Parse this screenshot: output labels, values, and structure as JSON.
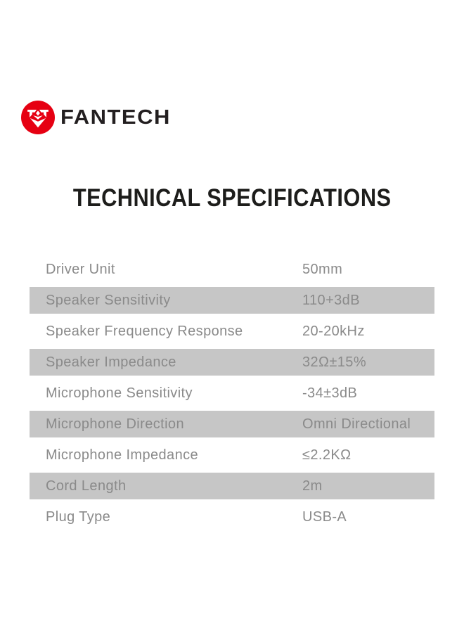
{
  "page": {
    "background": "#ffffff"
  },
  "logo": {
    "brand": "FANTECH",
    "emblem_icon": "fantech-falcon-emblem",
    "emblem_color": "#e60012",
    "text_color": "#231f20"
  },
  "title": {
    "text": "TECHNICAL SPECIFICATIONS",
    "color": "#1d1d1b"
  },
  "spec_table": {
    "stripe_color": "#c6c6c6",
    "text_color": "#8a8a8a",
    "rows": [
      {
        "label": "Driver Unit",
        "value": "50mm"
      },
      {
        "label": "Speaker Sensitivity",
        "value": "110+3dB"
      },
      {
        "label": "Speaker Frequency Response",
        "value": "20-20kHz"
      },
      {
        "label": "Speaker Impedance",
        "value": "32Ω±15%"
      },
      {
        "label": "Microphone Sensitivity",
        "value": "-34±3dB"
      },
      {
        "label": "Microphone Direction",
        "value": "Omni Directional"
      },
      {
        "label": "Microphone Impedance",
        "value": "≤2.2KΩ"
      },
      {
        "label": "Cord Length",
        "value": "2m"
      },
      {
        "label": "Plug Type",
        "value": "USB-A"
      }
    ]
  }
}
